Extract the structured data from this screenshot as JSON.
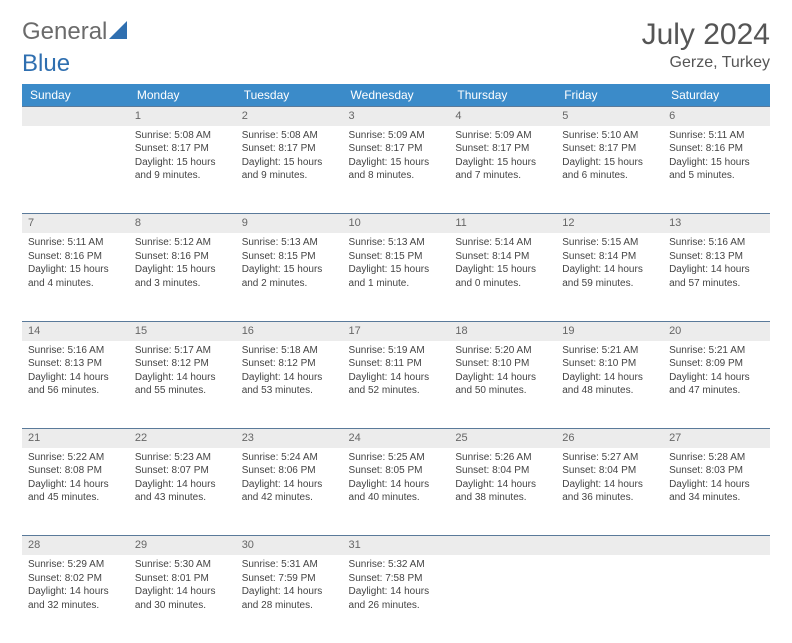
{
  "brand": {
    "text1": "General",
    "text2": "Blue"
  },
  "title": "July 2024",
  "location": "Gerze, Turkey",
  "colors": {
    "header_bg": "#3b8bc9",
    "daynum_bg": "#ececec",
    "daynum_border": "#5a7a9a",
    "text": "#444444",
    "title_color": "#555555",
    "logo_gray": "#6b6b6b",
    "logo_blue": "#2f6fb0"
  },
  "day_headers": [
    "Sunday",
    "Monday",
    "Tuesday",
    "Wednesday",
    "Thursday",
    "Friday",
    "Saturday"
  ],
  "weeks": [
    {
      "nums": [
        "",
        "1",
        "2",
        "3",
        "4",
        "5",
        "6"
      ],
      "cells": [
        null,
        {
          "sr": "Sunrise: 5:08 AM",
          "ss": "Sunset: 8:17 PM",
          "d1": "Daylight: 15 hours",
          "d2": "and 9 minutes."
        },
        {
          "sr": "Sunrise: 5:08 AM",
          "ss": "Sunset: 8:17 PM",
          "d1": "Daylight: 15 hours",
          "d2": "and 9 minutes."
        },
        {
          "sr": "Sunrise: 5:09 AM",
          "ss": "Sunset: 8:17 PM",
          "d1": "Daylight: 15 hours",
          "d2": "and 8 minutes."
        },
        {
          "sr": "Sunrise: 5:09 AM",
          "ss": "Sunset: 8:17 PM",
          "d1": "Daylight: 15 hours",
          "d2": "and 7 minutes."
        },
        {
          "sr": "Sunrise: 5:10 AM",
          "ss": "Sunset: 8:17 PM",
          "d1": "Daylight: 15 hours",
          "d2": "and 6 minutes."
        },
        {
          "sr": "Sunrise: 5:11 AM",
          "ss": "Sunset: 8:16 PM",
          "d1": "Daylight: 15 hours",
          "d2": "and 5 minutes."
        }
      ]
    },
    {
      "nums": [
        "7",
        "8",
        "9",
        "10",
        "11",
        "12",
        "13"
      ],
      "cells": [
        {
          "sr": "Sunrise: 5:11 AM",
          "ss": "Sunset: 8:16 PM",
          "d1": "Daylight: 15 hours",
          "d2": "and 4 minutes."
        },
        {
          "sr": "Sunrise: 5:12 AM",
          "ss": "Sunset: 8:16 PM",
          "d1": "Daylight: 15 hours",
          "d2": "and 3 minutes."
        },
        {
          "sr": "Sunrise: 5:13 AM",
          "ss": "Sunset: 8:15 PM",
          "d1": "Daylight: 15 hours",
          "d2": "and 2 minutes."
        },
        {
          "sr": "Sunrise: 5:13 AM",
          "ss": "Sunset: 8:15 PM",
          "d1": "Daylight: 15 hours",
          "d2": "and 1 minute."
        },
        {
          "sr": "Sunrise: 5:14 AM",
          "ss": "Sunset: 8:14 PM",
          "d1": "Daylight: 15 hours",
          "d2": "and 0 minutes."
        },
        {
          "sr": "Sunrise: 5:15 AM",
          "ss": "Sunset: 8:14 PM",
          "d1": "Daylight: 14 hours",
          "d2": "and 59 minutes."
        },
        {
          "sr": "Sunrise: 5:16 AM",
          "ss": "Sunset: 8:13 PM",
          "d1": "Daylight: 14 hours",
          "d2": "and 57 minutes."
        }
      ]
    },
    {
      "nums": [
        "14",
        "15",
        "16",
        "17",
        "18",
        "19",
        "20"
      ],
      "cells": [
        {
          "sr": "Sunrise: 5:16 AM",
          "ss": "Sunset: 8:13 PM",
          "d1": "Daylight: 14 hours",
          "d2": "and 56 minutes."
        },
        {
          "sr": "Sunrise: 5:17 AM",
          "ss": "Sunset: 8:12 PM",
          "d1": "Daylight: 14 hours",
          "d2": "and 55 minutes."
        },
        {
          "sr": "Sunrise: 5:18 AM",
          "ss": "Sunset: 8:12 PM",
          "d1": "Daylight: 14 hours",
          "d2": "and 53 minutes."
        },
        {
          "sr": "Sunrise: 5:19 AM",
          "ss": "Sunset: 8:11 PM",
          "d1": "Daylight: 14 hours",
          "d2": "and 52 minutes."
        },
        {
          "sr": "Sunrise: 5:20 AM",
          "ss": "Sunset: 8:10 PM",
          "d1": "Daylight: 14 hours",
          "d2": "and 50 minutes."
        },
        {
          "sr": "Sunrise: 5:21 AM",
          "ss": "Sunset: 8:10 PM",
          "d1": "Daylight: 14 hours",
          "d2": "and 48 minutes."
        },
        {
          "sr": "Sunrise: 5:21 AM",
          "ss": "Sunset: 8:09 PM",
          "d1": "Daylight: 14 hours",
          "d2": "and 47 minutes."
        }
      ]
    },
    {
      "nums": [
        "21",
        "22",
        "23",
        "24",
        "25",
        "26",
        "27"
      ],
      "cells": [
        {
          "sr": "Sunrise: 5:22 AM",
          "ss": "Sunset: 8:08 PM",
          "d1": "Daylight: 14 hours",
          "d2": "and 45 minutes."
        },
        {
          "sr": "Sunrise: 5:23 AM",
          "ss": "Sunset: 8:07 PM",
          "d1": "Daylight: 14 hours",
          "d2": "and 43 minutes."
        },
        {
          "sr": "Sunrise: 5:24 AM",
          "ss": "Sunset: 8:06 PM",
          "d1": "Daylight: 14 hours",
          "d2": "and 42 minutes."
        },
        {
          "sr": "Sunrise: 5:25 AM",
          "ss": "Sunset: 8:05 PM",
          "d1": "Daylight: 14 hours",
          "d2": "and 40 minutes."
        },
        {
          "sr": "Sunrise: 5:26 AM",
          "ss": "Sunset: 8:04 PM",
          "d1": "Daylight: 14 hours",
          "d2": "and 38 minutes."
        },
        {
          "sr": "Sunrise: 5:27 AM",
          "ss": "Sunset: 8:04 PM",
          "d1": "Daylight: 14 hours",
          "d2": "and 36 minutes."
        },
        {
          "sr": "Sunrise: 5:28 AM",
          "ss": "Sunset: 8:03 PM",
          "d1": "Daylight: 14 hours",
          "d2": "and 34 minutes."
        }
      ]
    },
    {
      "nums": [
        "28",
        "29",
        "30",
        "31",
        "",
        "",
        ""
      ],
      "cells": [
        {
          "sr": "Sunrise: 5:29 AM",
          "ss": "Sunset: 8:02 PM",
          "d1": "Daylight: 14 hours",
          "d2": "and 32 minutes."
        },
        {
          "sr": "Sunrise: 5:30 AM",
          "ss": "Sunset: 8:01 PM",
          "d1": "Daylight: 14 hours",
          "d2": "and 30 minutes."
        },
        {
          "sr": "Sunrise: 5:31 AM",
          "ss": "Sunset: 7:59 PM",
          "d1": "Daylight: 14 hours",
          "d2": "and 28 minutes."
        },
        {
          "sr": "Sunrise: 5:32 AM",
          "ss": "Sunset: 7:58 PM",
          "d1": "Daylight: 14 hours",
          "d2": "and 26 minutes."
        },
        null,
        null,
        null
      ]
    }
  ]
}
